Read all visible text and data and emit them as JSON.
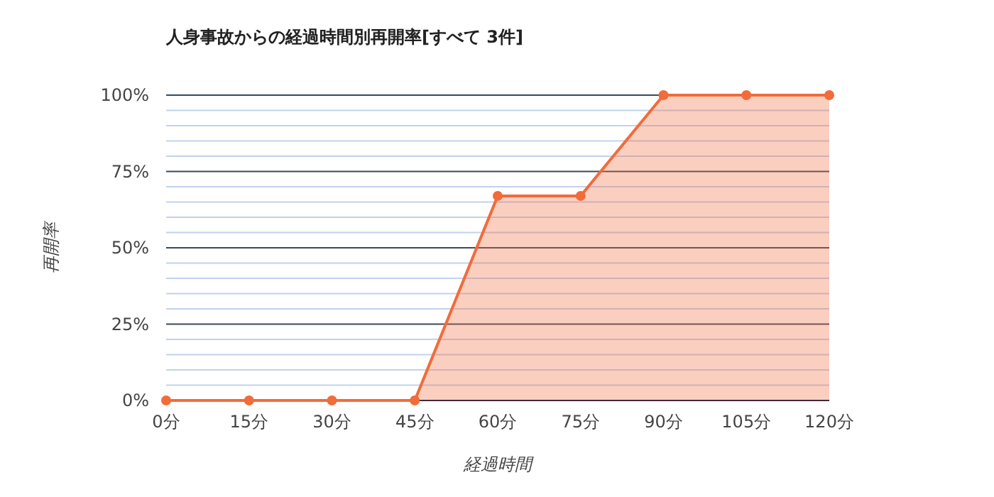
{
  "chart_data": {
    "type": "area",
    "title": "人身事故からの経過時間別再開率[すべて 3件]",
    "xlabel": "経過時間",
    "ylabel": "再開率",
    "categories": [
      "0分",
      "15分",
      "30分",
      "45分",
      "60分",
      "75分",
      "90分",
      "105分",
      "120分"
    ],
    "series": [
      {
        "color": "#f26b3a",
        "values": [
          0,
          0,
          0,
          0,
          67,
          67,
          100,
          100,
          100
        ]
      }
    ],
    "ylim": [
      0,
      100
    ],
    "yticks": [
      {
        "value": 0,
        "label": "0%"
      },
      {
        "value": 5,
        "label": null
      },
      {
        "value": 10,
        "label": null
      },
      {
        "value": 15,
        "label": null
      },
      {
        "value": 20,
        "label": null
      },
      {
        "value": 25,
        "label": "25%"
      },
      {
        "value": 30,
        "label": null
      },
      {
        "value": 35,
        "label": null
      },
      {
        "value": 40,
        "label": null
      },
      {
        "value": 45,
        "label": null
      },
      {
        "value": 50,
        "label": "50%"
      },
      {
        "value": 55,
        "label": null
      },
      {
        "value": 60,
        "label": null
      },
      {
        "value": 65,
        "label": null
      },
      {
        "value": 70,
        "label": null
      },
      {
        "value": 75,
        "label": "75%"
      },
      {
        "value": 80,
        "label": null
      },
      {
        "value": 85,
        "label": null
      },
      {
        "value": 90,
        "label": null
      },
      {
        "value": 95,
        "label": null
      },
      {
        "value": 100,
        "label": "100%"
      }
    ],
    "grid": true,
    "marker": "circle",
    "line_style": "solid"
  }
}
